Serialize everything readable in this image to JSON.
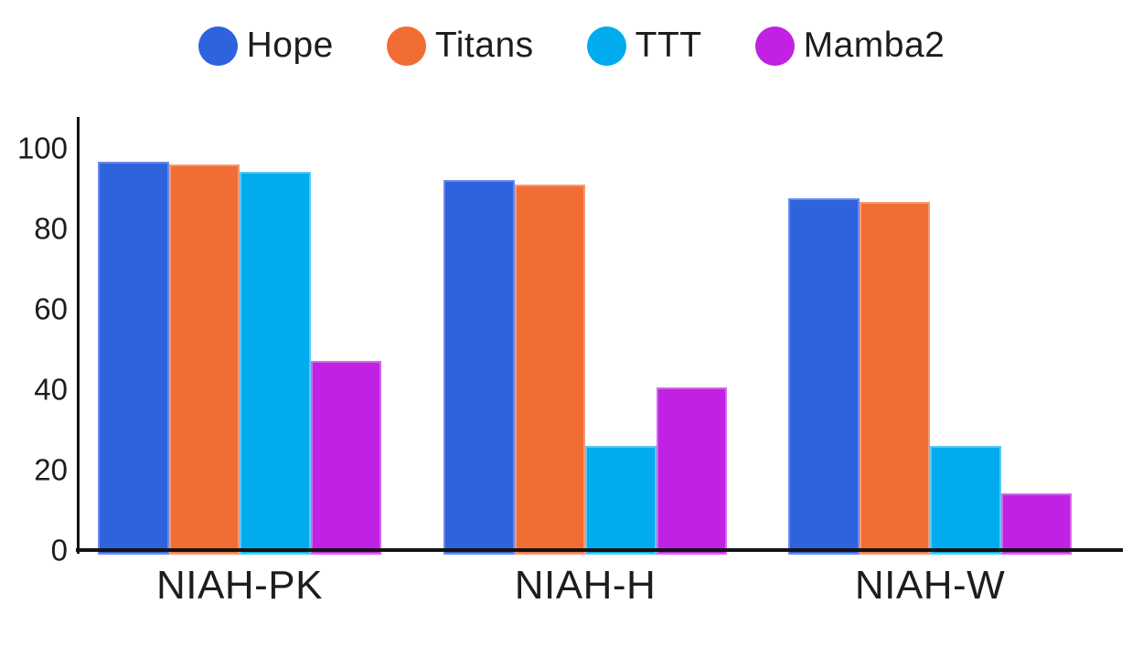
{
  "page": {
    "background": "#ffffff",
    "text_color": "#1d1d1f",
    "axis_color": "#141414"
  },
  "chart_data": {
    "type": "bar",
    "title": "",
    "xlabel": "",
    "ylabel": "",
    "categories": [
      "NIAH-PK",
      "NIAH-H",
      "NIAH-W"
    ],
    "series": [
      {
        "name": "Hope",
        "color": "#2D63DC",
        "edge_color": "#6E89EA",
        "values": [
          96.5,
          92.0,
          87.5
        ]
      },
      {
        "name": "Titans",
        "color": "#F16D34",
        "edge_color": "#F69A72",
        "values": [
          96.0,
          91.0,
          86.5
        ]
      },
      {
        "name": "TTT",
        "color": "#00ABEE",
        "edge_color": "#5BC8F3",
        "values": [
          94.0,
          26.0,
          26.0
        ]
      },
      {
        "name": "Mamba2",
        "color": "#C121E2",
        "edge_color": "#D467EB",
        "values": [
          47.0,
          40.5,
          14.0
        ]
      }
    ],
    "ylim": [
      0,
      100
    ],
    "yticks": [
      0,
      20,
      40,
      60,
      80,
      100
    ],
    "grid": false,
    "legend_position": "top"
  }
}
